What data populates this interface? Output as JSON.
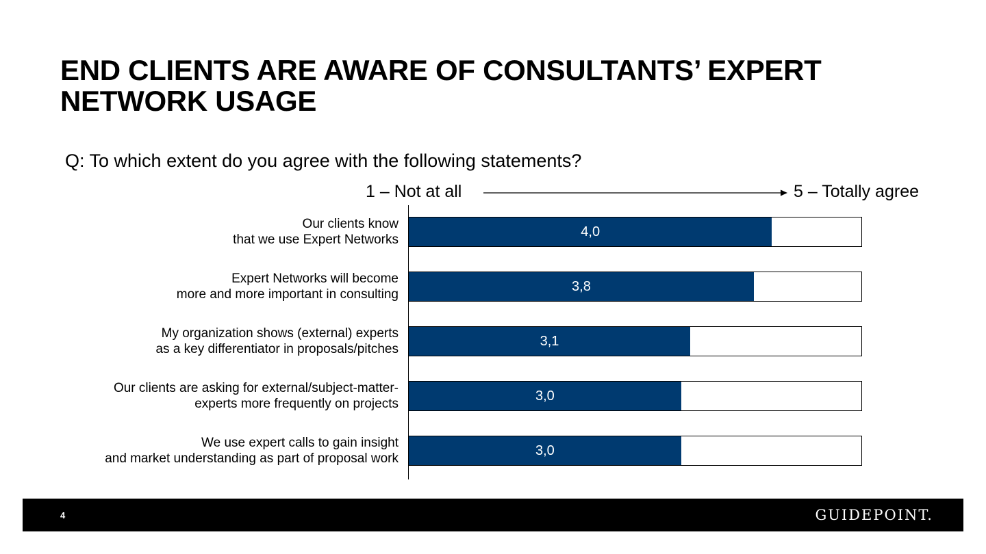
{
  "slide": {
    "title": "END CLIENTS ARE AWARE OF CONSULTANTS’ EXPERT\nNETWORK USAGE",
    "question": "Q: To which extent do you agree with the following statements?",
    "page_number": "4",
    "logo_text": "GUIDEPOINT."
  },
  "chart_data": {
    "type": "bar",
    "orientation": "horizontal",
    "scale_low_label": "1 – Not at all",
    "scale_high_label": "5 – Totally agree",
    "xlim": [
      0,
      5
    ],
    "categories": [
      [
        "Our clients know ",
        "that we use Expert Networks"
      ],
      [
        "Expert Networks will become ",
        "more and more important in consulting"
      ],
      [
        "My organization shows (external) experts ",
        "as a key differentiator in proposals/pitches"
      ],
      [
        "Our clients are asking for external/subject-matter-",
        "experts more frequently on projects"
      ],
      [
        "We use expert calls to gain insight ",
        "and market understanding as part of proposal work"
      ]
    ],
    "values": [
      4.0,
      3.8,
      3.1,
      3.0,
      3.0
    ],
    "value_labels": [
      "4,0",
      "3,8",
      "3,1",
      "3,0",
      "3,0"
    ],
    "bar_color": "#003a70"
  }
}
